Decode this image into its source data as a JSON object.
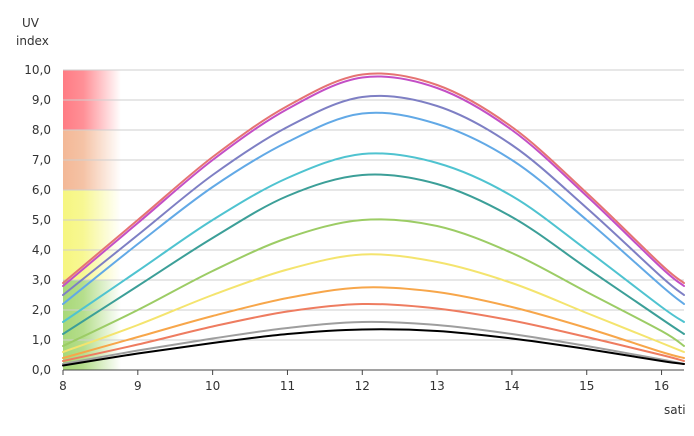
{
  "chart_data": {
    "type": "line",
    "ylabel_lines": [
      "UV",
      "index"
    ],
    "xlabel": "sati",
    "xlim": [
      8,
      16.3
    ],
    "ylim": [
      0,
      10
    ],
    "x_ticks": [
      8,
      9,
      10,
      11,
      12,
      13,
      14,
      15,
      16
    ],
    "x_tick_labels": [
      "8",
      "9",
      "10",
      "11",
      "12",
      "13",
      "14",
      "15",
      "16"
    ],
    "y_ticks": [
      0,
      1,
      2,
      3,
      4,
      5,
      6,
      7,
      8,
      9,
      10
    ],
    "y_tick_labels": [
      "0,0",
      "1,0",
      "2,0",
      "3,0",
      "4,0",
      "5,0",
      "6,0",
      "7,0",
      "8,0",
      "9,0",
      "10,0"
    ],
    "grid": true,
    "bands": [
      {
        "from": 0,
        "to": 3,
        "color": "#a8d878"
      },
      {
        "from": 3,
        "to": 6,
        "color": "#f6f680"
      },
      {
        "from": 6,
        "to": 8,
        "color": "#f3b896"
      },
      {
        "from": 8,
        "to": 10,
        "color": "#ff7c84"
      }
    ],
    "series": [
      {
        "color": "#e57373",
        "values": [
          [
            8,
            2.9
          ],
          [
            9,
            5.0
          ],
          [
            10,
            7.1
          ],
          [
            11,
            8.8
          ],
          [
            12,
            9.85
          ],
          [
            13,
            9.5
          ],
          [
            14,
            8.1
          ],
          [
            15,
            5.9
          ],
          [
            16,
            3.5
          ],
          [
            16.3,
            2.9
          ]
        ]
      },
      {
        "color": "#c34fc6",
        "values": [
          [
            8,
            2.8
          ],
          [
            9,
            4.9
          ],
          [
            10,
            7.0
          ],
          [
            11,
            8.7
          ],
          [
            12,
            9.75
          ],
          [
            13,
            9.4
          ],
          [
            14,
            8.0
          ],
          [
            15,
            5.8
          ],
          [
            16,
            3.4
          ],
          [
            16.3,
            2.8
          ]
        ]
      },
      {
        "color": "#7e7fc4",
        "values": [
          [
            8,
            2.5
          ],
          [
            9,
            4.5
          ],
          [
            10,
            6.5
          ],
          [
            11,
            8.1
          ],
          [
            12,
            9.1
          ],
          [
            13,
            8.8
          ],
          [
            14,
            7.5
          ],
          [
            15,
            5.4
          ],
          [
            16,
            3.1
          ],
          [
            16.3,
            2.5
          ]
        ]
      },
      {
        "color": "#62a9e6",
        "values": [
          [
            8,
            2.2
          ],
          [
            9,
            4.2
          ],
          [
            10,
            6.1
          ],
          [
            11,
            7.6
          ],
          [
            12,
            8.55
          ],
          [
            13,
            8.2
          ],
          [
            14,
            7.0
          ],
          [
            15,
            5.0
          ],
          [
            16,
            2.8
          ],
          [
            16.3,
            2.2
          ]
        ]
      },
      {
        "color": "#4fc3d0",
        "values": [
          [
            8,
            1.6
          ],
          [
            9,
            3.3
          ],
          [
            10,
            5.0
          ],
          [
            11,
            6.4
          ],
          [
            12,
            7.2
          ],
          [
            13,
            6.9
          ],
          [
            14,
            5.8
          ],
          [
            15,
            4.0
          ],
          [
            16,
            2.1
          ],
          [
            16.3,
            1.6
          ]
        ]
      },
      {
        "color": "#3c9f98",
        "values": [
          [
            8,
            1.2
          ],
          [
            9,
            2.8
          ],
          [
            10,
            4.4
          ],
          [
            11,
            5.8
          ],
          [
            12,
            6.5
          ],
          [
            13,
            6.2
          ],
          [
            14,
            5.1
          ],
          [
            15,
            3.4
          ],
          [
            16,
            1.7
          ],
          [
            16.3,
            1.2
          ]
        ]
      },
      {
        "color": "#9ccc65",
        "values": [
          [
            8,
            0.8
          ],
          [
            9,
            2.0
          ],
          [
            10,
            3.3
          ],
          [
            11,
            4.4
          ],
          [
            12,
            5.0
          ],
          [
            13,
            4.8
          ],
          [
            14,
            3.9
          ],
          [
            15,
            2.6
          ],
          [
            16,
            1.3
          ],
          [
            16.3,
            0.8
          ]
        ]
      },
      {
        "color": "#f4e46e",
        "values": [
          [
            8,
            0.6
          ],
          [
            9,
            1.5
          ],
          [
            10,
            2.5
          ],
          [
            11,
            3.35
          ],
          [
            12,
            3.85
          ],
          [
            13,
            3.6
          ],
          [
            14,
            2.9
          ],
          [
            15,
            1.9
          ],
          [
            16,
            0.9
          ],
          [
            16.3,
            0.6
          ]
        ]
      },
      {
        "color": "#f7a64a",
        "values": [
          [
            8,
            0.4
          ],
          [
            9,
            1.1
          ],
          [
            10,
            1.8
          ],
          [
            11,
            2.4
          ],
          [
            12,
            2.75
          ],
          [
            13,
            2.6
          ],
          [
            14,
            2.1
          ],
          [
            15,
            1.4
          ],
          [
            16,
            0.6
          ],
          [
            16.3,
            0.4
          ]
        ]
      },
      {
        "color": "#ee7c60",
        "values": [
          [
            8,
            0.3
          ],
          [
            9,
            0.85
          ],
          [
            10,
            1.45
          ],
          [
            11,
            1.95
          ],
          [
            12,
            2.2
          ],
          [
            13,
            2.05
          ],
          [
            14,
            1.65
          ],
          [
            15,
            1.1
          ],
          [
            16,
            0.5
          ],
          [
            16.3,
            0.3
          ]
        ]
      },
      {
        "color": "#9e9e9e",
        "values": [
          [
            8,
            0.2
          ],
          [
            9,
            0.65
          ],
          [
            10,
            1.05
          ],
          [
            11,
            1.4
          ],
          [
            12,
            1.6
          ],
          [
            13,
            1.5
          ],
          [
            14,
            1.2
          ],
          [
            15,
            0.8
          ],
          [
            16,
            0.35
          ],
          [
            16.3,
            0.2
          ]
        ]
      },
      {
        "color": "#000000",
        "values": [
          [
            8,
            0.15
          ],
          [
            9,
            0.55
          ],
          [
            10,
            0.9
          ],
          [
            11,
            1.2
          ],
          [
            12,
            1.35
          ],
          [
            13,
            1.3
          ],
          [
            14,
            1.05
          ],
          [
            15,
            0.7
          ],
          [
            16,
            0.3
          ],
          [
            16.3,
            0.2
          ]
        ]
      }
    ]
  }
}
